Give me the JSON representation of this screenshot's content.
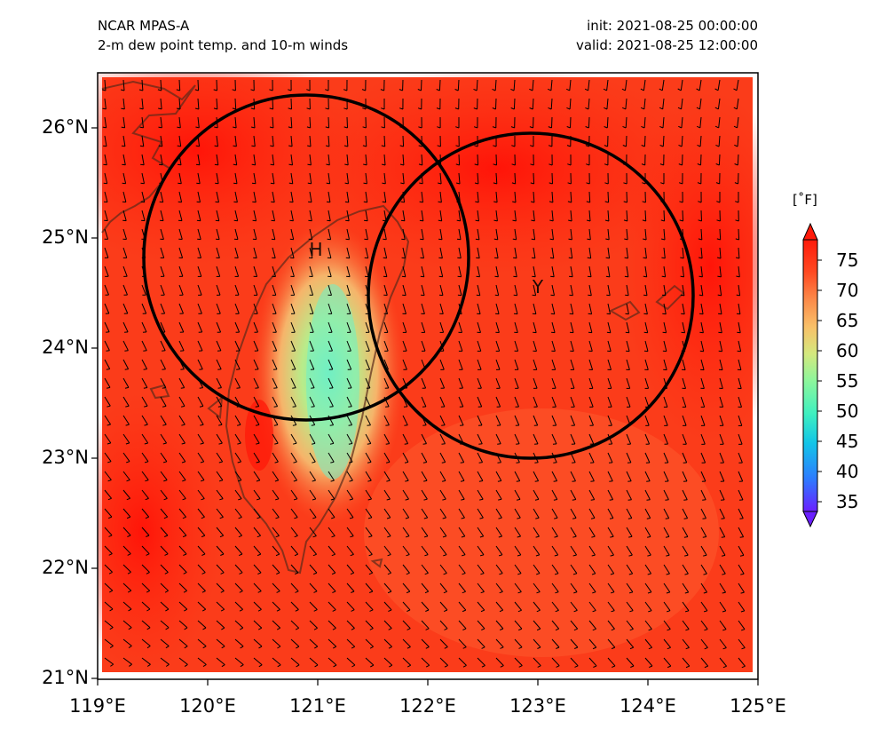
{
  "header": {
    "left_line1": "NCAR MPAS-A",
    "left_line2": "2-m dew point temp. and 10-m winds",
    "right_line1": "init: 2021-08-25 00:00:00",
    "right_line2": "valid: 2021-08-25 12:00:00"
  },
  "map": {
    "lat_labels": [
      "26°N",
      "25°N",
      "24°N",
      "23°N",
      "22°N",
      "21°N"
    ],
    "lon_labels": [
      "119°E",
      "120°E",
      "121°E",
      "122°E",
      "123°E",
      "124°E",
      "125°E"
    ],
    "lat_range": [
      21,
      26.5
    ],
    "lon_range": [
      119,
      125
    ],
    "markers": [
      {
        "label": "H",
        "lon": 120.95,
        "lat": 24.9
      },
      {
        "label": "Y",
        "lon": 122.9,
        "lat": 24.55
      }
    ],
    "range_rings": [
      {
        "center_lon": 120.9,
        "center_lat": 24.85,
        "radius_deg": 1.45
      },
      {
        "center_lon": 122.9,
        "center_lat": 24.45,
        "radius_deg": 1.45
      }
    ],
    "field_colors": {
      "ocean": "#fb3c1a",
      "warm": "#ff1a0a",
      "land_mid": "#f7a052",
      "land_low": "#7cf0b4"
    }
  },
  "colorbar": {
    "unit_label": "[˚F]",
    "ticks": [
      "75",
      "70",
      "65",
      "60",
      "55",
      "50",
      "45",
      "40",
      "35"
    ],
    "range": [
      35,
      80
    ],
    "colors": [
      "#6a1fff",
      "#2d7bff",
      "#12c4e8",
      "#3ff0c0",
      "#8cf69c",
      "#d4e87e",
      "#f9c068",
      "#fb8a4a",
      "#ff4a22",
      "#ff1a0a"
    ]
  }
}
